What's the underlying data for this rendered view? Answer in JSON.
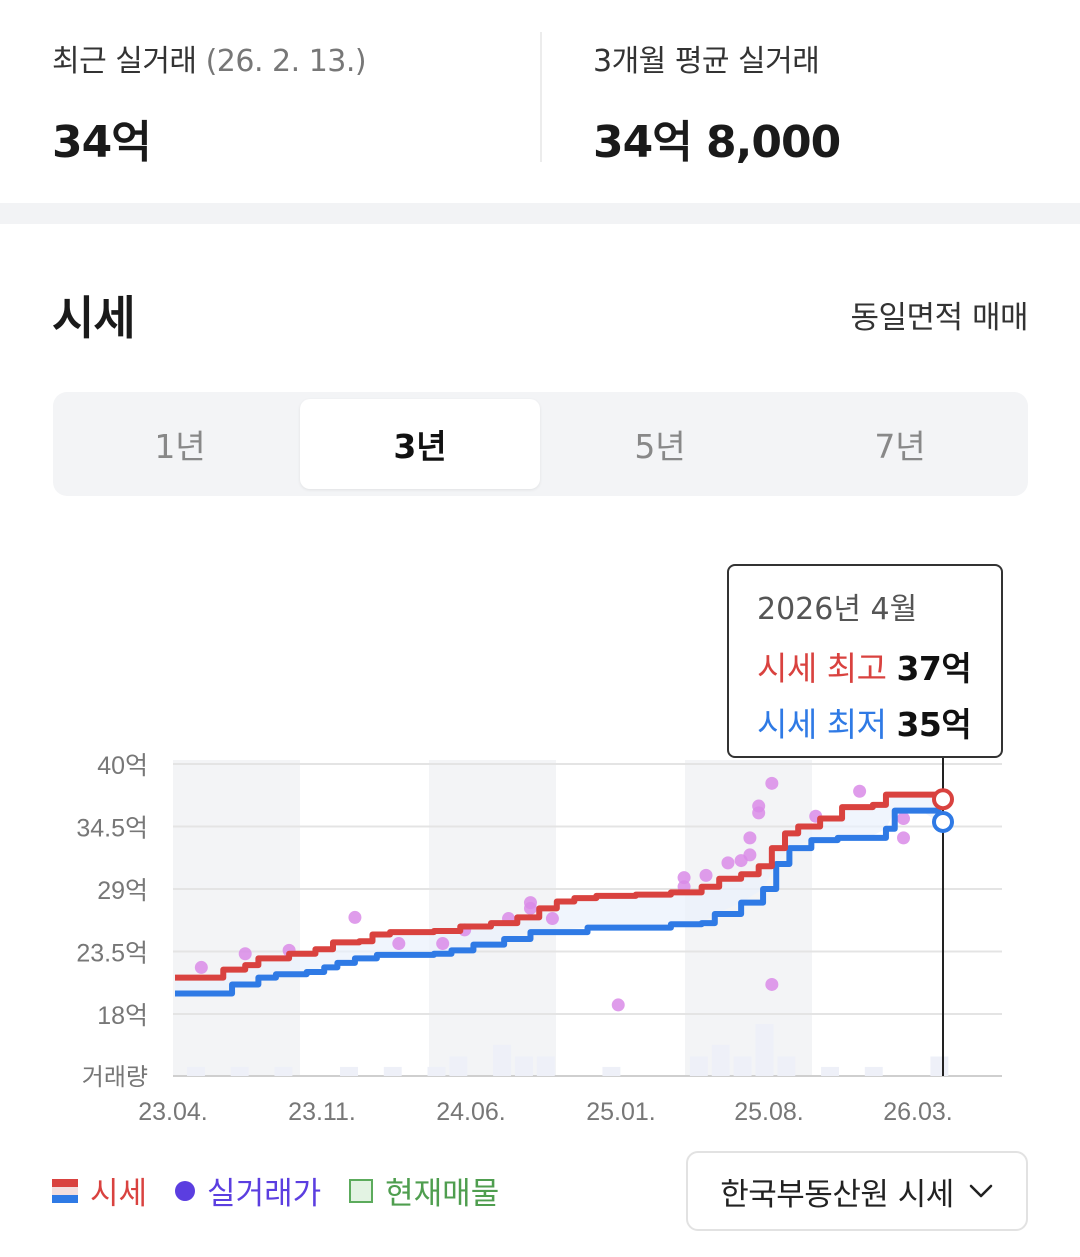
{
  "summary": {
    "recent": {
      "label": "최근 실거래",
      "date": "(26. 2. 13.)",
      "value": "34억"
    },
    "avg3m": {
      "label": "3개월 평균 실거래",
      "value": "34억 8,000"
    }
  },
  "section": {
    "title": "시세",
    "filter_label": "동일면적 매매"
  },
  "period_tabs": [
    {
      "label": "1년",
      "active": false
    },
    {
      "label": "3년",
      "active": true
    },
    {
      "label": "5년",
      "active": false
    },
    {
      "label": "7년",
      "active": false
    }
  ],
  "tooltip": {
    "date": "2026년 4월",
    "high_label": "시세 최고",
    "high_value": "37억",
    "low_label": "시세 최저",
    "low_value": "35억"
  },
  "legend": {
    "sise": "시세",
    "real_trade": "실거래가",
    "listing": "현재매물"
  },
  "source_button": {
    "label": "한국부동산원 시세",
    "icon": "chevron-down-icon"
  },
  "colors": {
    "high": "#d9423f",
    "low": "#2f7ae5",
    "dots": "#d98be8",
    "listing": "#5cab5c",
    "real_trade_legend": "#5b3ee0"
  },
  "chart_data": {
    "type": "line",
    "title": "",
    "xlabel": "",
    "ylabel": "",
    "y_tick_labels": [
      "40억",
      "34.5억",
      "29억",
      "23.5억",
      "18억"
    ],
    "y_ticks": [
      40,
      34.5,
      29,
      23.5,
      18
    ],
    "ylim": [
      18,
      40
    ],
    "x_tick_labels": [
      "23.04.",
      "23.11.",
      "24.06.",
      "25.01.",
      "25.08.",
      "26.03."
    ],
    "volume_label": "거래량",
    "grid": true,
    "series": [
      {
        "name": "시세 최고",
        "color": "#d9423f",
        "points": [
          [
            0,
            21.2
          ],
          [
            0.8,
            21.2
          ],
          [
            1.1,
            21.9
          ],
          [
            1.6,
            22.3
          ],
          [
            1.9,
            22.9
          ],
          [
            2.6,
            23.3
          ],
          [
            3.2,
            23.7
          ],
          [
            3.6,
            24.3
          ],
          [
            4.2,
            24.4
          ],
          [
            4.5,
            25.0
          ],
          [
            4.9,
            25.2
          ],
          [
            5.9,
            25.3
          ],
          [
            6.5,
            25.7
          ],
          [
            7.2,
            26.0
          ],
          [
            7.8,
            26.5
          ],
          [
            8.3,
            27.3
          ],
          [
            8.7,
            27.9
          ],
          [
            9.1,
            28.2
          ],
          [
            9.6,
            28.4
          ],
          [
            10.5,
            28.5
          ],
          [
            11.3,
            28.7
          ],
          [
            12.0,
            29.2
          ],
          [
            12.4,
            29.9
          ],
          [
            12.9,
            30.3
          ],
          [
            13.3,
            31.0
          ],
          [
            13.6,
            32.6
          ],
          [
            13.9,
            33.9
          ],
          [
            14.2,
            34.5
          ],
          [
            14.7,
            35.2
          ],
          [
            15.2,
            36.2
          ],
          [
            15.9,
            36.4
          ],
          [
            16.2,
            37.3
          ],
          [
            17.0,
            37.3
          ],
          [
            17.4,
            36.9
          ],
          [
            17.5,
            36.9
          ]
        ]
      },
      {
        "name": "시세 최저",
        "color": "#2f7ae5",
        "points": [
          [
            0,
            19.8
          ],
          [
            1.1,
            19.8
          ],
          [
            1.3,
            20.6
          ],
          [
            1.9,
            21.2
          ],
          [
            2.3,
            21.5
          ],
          [
            3.0,
            21.7
          ],
          [
            3.4,
            22.1
          ],
          [
            3.7,
            22.5
          ],
          [
            4.1,
            22.9
          ],
          [
            4.6,
            23.2
          ],
          [
            5.9,
            23.3
          ],
          [
            6.3,
            23.6
          ],
          [
            6.8,
            24.1
          ],
          [
            7.5,
            24.6
          ],
          [
            8.1,
            25.2
          ],
          [
            9.4,
            25.6
          ],
          [
            10.8,
            25.6
          ],
          [
            11.3,
            25.9
          ],
          [
            12.0,
            26.0
          ],
          [
            12.3,
            26.8
          ],
          [
            12.9,
            27.8
          ],
          [
            13.4,
            29.0
          ],
          [
            13.7,
            31.2
          ],
          [
            14.0,
            32.6
          ],
          [
            14.5,
            33.3
          ],
          [
            15.1,
            33.5
          ],
          [
            15.8,
            33.5
          ],
          [
            16.2,
            34.3
          ],
          [
            16.4,
            35.9
          ],
          [
            17.0,
            35.9
          ],
          [
            17.4,
            34.9
          ],
          [
            17.5,
            34.9
          ]
        ]
      }
    ],
    "real_trades": [
      [
        0.6,
        22.1
      ],
      [
        1.6,
        23.3
      ],
      [
        2.6,
        23.6
      ],
      [
        4.1,
        26.5
      ],
      [
        5.1,
        24.2
      ],
      [
        6.1,
        24.2
      ],
      [
        6.6,
        25.4
      ],
      [
        7.6,
        26.4
      ],
      [
        8.1,
        27.3
      ],
      [
        8.1,
        27.8
      ],
      [
        8.6,
        26.4
      ],
      [
        10.1,
        18.8
      ],
      [
        11.6,
        29.2
      ],
      [
        11.6,
        30.0
      ],
      [
        12.1,
        30.2
      ],
      [
        12.6,
        31.3
      ],
      [
        12.9,
        31.5
      ],
      [
        13.1,
        32.0
      ],
      [
        13.1,
        33.5
      ],
      [
        13.3,
        35.7
      ],
      [
        13.3,
        36.3
      ],
      [
        13.6,
        38.3
      ],
      [
        13.6,
        20.6
      ],
      [
        14.6,
        35.4
      ],
      [
        15.6,
        37.6
      ],
      [
        16.6,
        35.2
      ],
      [
        16.6,
        33.5
      ]
    ],
    "volume": [
      0.7,
      0,
      0.7,
      0,
      0.7,
      0,
      0,
      0.7,
      0,
      0.7,
      0,
      0.7,
      1.5,
      0,
      2.4,
      1.5,
      1.5,
      0,
      0,
      0.7,
      0,
      0,
      0,
      1.5,
      2.4,
      1.5,
      4.0,
      1.5,
      0,
      0.7,
      0,
      0.7,
      0,
      0,
      1.5,
      0,
      0
    ]
  }
}
